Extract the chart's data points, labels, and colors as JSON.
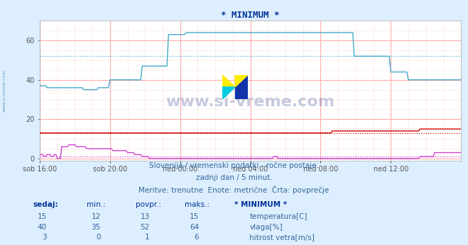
{
  "title": "* MINIMUM *",
  "bg_color": "#ddeeff",
  "plot_bg_color": "#ffffff",
  "grid_color_major": "#ffaaaa",
  "grid_color_minor": "#ffdddd",
  "xlim": [
    0,
    288
  ],
  "ylim": [
    -1,
    70
  ],
  "yticks": [
    0,
    20,
    40,
    60
  ],
  "xtick_labels": [
    "sob 16:00",
    "sob 20:00",
    "ned 00:00",
    "ned 04:00",
    "ned 08:00",
    "ned 12:00"
  ],
  "xtick_positions": [
    0,
    48,
    96,
    144,
    192,
    240
  ],
  "temp_color": "#cc0000",
  "humid_color": "#44aacc",
  "wind_color": "#cc44cc",
  "temp_avg": 13,
  "humid_avg": 52,
  "wind_avg": 1,
  "subtitle1": "Slovenija / vremenski podatki - ročne postaje.",
  "subtitle2": "zadnji dan / 5 minut.",
  "subtitle3": "Meritve: trenutne  Enote: metrične  Črta: povprečje",
  "table_header": [
    "sedaj:",
    "min.:",
    "povpr.:",
    "maks.:",
    "* MINIMUM *"
  ],
  "table_rows": [
    [
      15,
      12,
      13,
      15,
      "temperatura[C]",
      "#cc0000"
    ],
    [
      40,
      35,
      52,
      64,
      "vlaga[%]",
      "#44aacc"
    ],
    [
      3,
      0,
      1,
      6,
      "hitrost vetra[m/s]",
      "#cc44cc"
    ]
  ],
  "watermark": "www.si-vreme.com",
  "watermark_color": "#223388",
  "sidebar_text": "www.si-vreme.com"
}
